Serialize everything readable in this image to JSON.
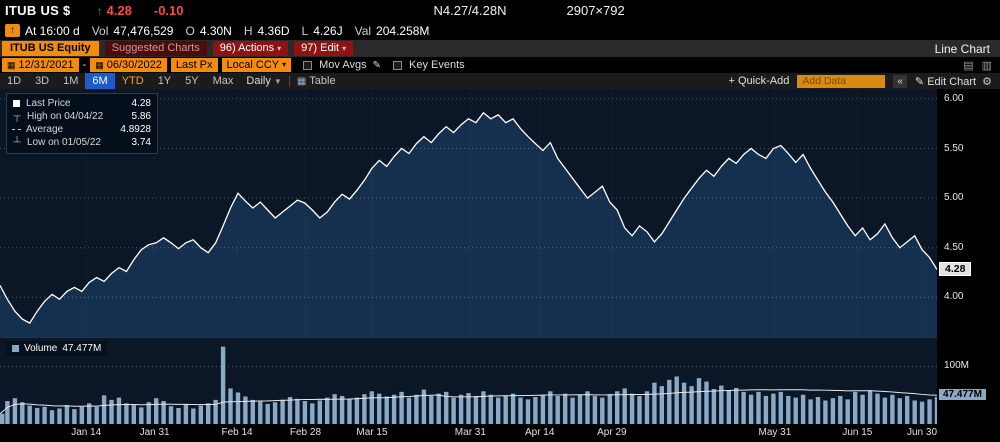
{
  "topbar": {
    "ticker": "ITUB US $",
    "last": "4.28",
    "change": "-0.10",
    "bid_ask": "N4.27/4.28N",
    "size": "2907×792",
    "at_label": "At 16:00 d",
    "vol_label": "Vol",
    "vol": "47,476,529",
    "o_label": "O",
    "open": "4.30N",
    "h_label": "H",
    "high": "4.36D",
    "l_label": "L",
    "low": "4.26J",
    "val_label": "Val",
    "val": "204.258M"
  },
  "toolbar": {
    "security": "ITUB US Equity",
    "suggested": "Suggested Charts",
    "actions": "96) Actions",
    "edit": "97) Edit",
    "title": "Line Chart"
  },
  "controls": {
    "date_from": "12/31/2021",
    "range_sep": "-",
    "date_to": "06/30/2022",
    "price_field": "Last Px",
    "currency": "Local CCY",
    "mov_avgs": "Mov Avgs",
    "key_events": "Key Events"
  },
  "tabs": {
    "periods": [
      "1D",
      "3D",
      "1M",
      "6M",
      "YTD",
      "1Y",
      "5Y",
      "Max"
    ],
    "selected": "6M",
    "frequency": "Daily",
    "table": "Table",
    "quick_add": "+ Quick-Add",
    "add_data_placeholder": "Add Data",
    "edit_chart": "Edit Chart"
  },
  "icons": {
    "tick_up": "↑",
    "source_arrow": "↑",
    "calendar": "▦",
    "pencil": "✎",
    "gear": "⚙",
    "table_grid": "▦",
    "collapse": "«",
    "caret_down": "▼",
    "dropdown": "▾",
    "tool_a": "▤",
    "tool_b": "▥"
  },
  "legend": {
    "items": [
      {
        "marker": "square",
        "label": "Last Price",
        "value": "4.28"
      },
      {
        "marker": "high",
        "label": "High on 04/04/22",
        "value": "5.86"
      },
      {
        "marker": "avg",
        "label": "Average",
        "value": "4.8928"
      },
      {
        "marker": "low",
        "label": "Low on 01/05/22",
        "value": "3.74"
      }
    ]
  },
  "volume_legend": {
    "label": "Volume",
    "value": "47.477M"
  },
  "chart_data": {
    "type": "line",
    "title": "ITUB US Equity Line Chart 12/31/2021 - 06/30/2022 Daily",
    "x_labels": [
      {
        "label": "Jan 14",
        "pos": 0.092
      },
      {
        "label": "Jan 31",
        "pos": 0.165
      },
      {
        "label": "Feb 14",
        "pos": 0.253
      },
      {
        "label": "Feb 28",
        "pos": 0.326
      },
      {
        "label": "Mar 15",
        "pos": 0.397
      },
      {
        "label": "Mar 31",
        "pos": 0.502
      },
      {
        "label": "Apr 14",
        "pos": 0.576
      },
      {
        "label": "Apr 29",
        "pos": 0.653
      },
      {
        "label": "May 31",
        "pos": 0.827
      },
      {
        "label": "Jun 15",
        "pos": 0.915
      },
      {
        "label": "Jun 30",
        "pos": 0.984
      }
    ],
    "price": {
      "name": "Last Price",
      "ylim": [
        3.6,
        6.1
      ],
      "ticks": [
        6.0,
        5.5,
        5.0,
        4.5,
        4.0
      ],
      "last": 4.28,
      "last_label": "4.28",
      "high": {
        "date": "04/04/22",
        "value": 5.86
      },
      "low": {
        "date": "01/05/22",
        "value": 3.74
      },
      "average": 4.8928,
      "values": [
        4.12,
        3.98,
        3.86,
        3.78,
        3.74,
        3.86,
        3.96,
        4.03,
        3.98,
        4.06,
        4.1,
        4.06,
        4.15,
        4.2,
        4.16,
        4.24,
        4.3,
        4.26,
        4.38,
        4.48,
        4.53,
        4.55,
        4.6,
        4.55,
        4.49,
        4.55,
        4.58,
        4.5,
        4.45,
        4.55,
        4.72,
        4.9,
        5.05,
        4.97,
        4.9,
        4.96,
        4.88,
        4.8,
        4.86,
        4.92,
        4.98,
        4.95,
        4.88,
        4.8,
        4.86,
        4.96,
        5.04,
        4.99,
        5.08,
        5.18,
        5.3,
        5.38,
        5.32,
        5.42,
        5.5,
        5.45,
        5.55,
        5.62,
        5.56,
        5.65,
        5.72,
        5.66,
        5.74,
        5.8,
        5.76,
        5.86,
        5.8,
        5.84,
        5.76,
        5.8,
        5.7,
        5.62,
        5.55,
        5.48,
        5.56,
        5.4,
        5.3,
        5.2,
        5.1,
        5.0,
        5.06,
        5.12,
        4.96,
        4.88,
        4.7,
        4.62,
        4.72,
        4.66,
        4.56,
        4.64,
        4.76,
        4.88,
        5.0,
        5.1,
        5.2,
        5.28,
        5.22,
        5.32,
        5.4,
        5.35,
        5.44,
        5.5,
        5.44,
        5.4,
        5.5,
        5.53,
        5.45,
        5.36,
        5.44,
        5.3,
        5.18,
        5.06,
        4.96,
        4.84,
        4.72,
        4.62,
        4.7,
        4.58,
        4.64,
        4.74,
        4.6,
        4.5,
        4.56,
        4.62,
        4.48,
        4.4,
        4.28
      ]
    },
    "volume": {
      "type": "bar",
      "name": "Volume",
      "vmax_millions": 150,
      "ticks": [
        {
          "label": "100M",
          "value": 100
        }
      ],
      "last": 47.477,
      "last_label": "47.477M",
      "values_millions": [
        18,
        40,
        45,
        38,
        32,
        28,
        30,
        24,
        27,
        33,
        26,
        30,
        36,
        30,
        50,
        42,
        46,
        36,
        33,
        29,
        38,
        45,
        40,
        31,
        28,
        34,
        27,
        32,
        36,
        42,
        135,
        62,
        55,
        48,
        42,
        39,
        35,
        38,
        42,
        47,
        44,
        40,
        36,
        41,
        46,
        52,
        49,
        43,
        46,
        52,
        57,
        53,
        48,
        51,
        56,
        46,
        51,
        60,
        49,
        53,
        56,
        46,
        51,
        54,
        49,
        57,
        51,
        46,
        49,
        53,
        46,
        43,
        47,
        51,
        57,
        49,
        53,
        46,
        51,
        57,
        49,
        46,
        52,
        57,
        62,
        53,
        49,
        57,
        72,
        66,
        77,
        83,
        72,
        66,
        80,
        74,
        61,
        67,
        59,
        63,
        56,
        51,
        56,
        49,
        53,
        56,
        49,
        46,
        51,
        43,
        47,
        41,
        45,
        49,
        43,
        56,
        51,
        59,
        53,
        46,
        51,
        45,
        49,
        41,
        39,
        43,
        47.477
      ]
    }
  }
}
